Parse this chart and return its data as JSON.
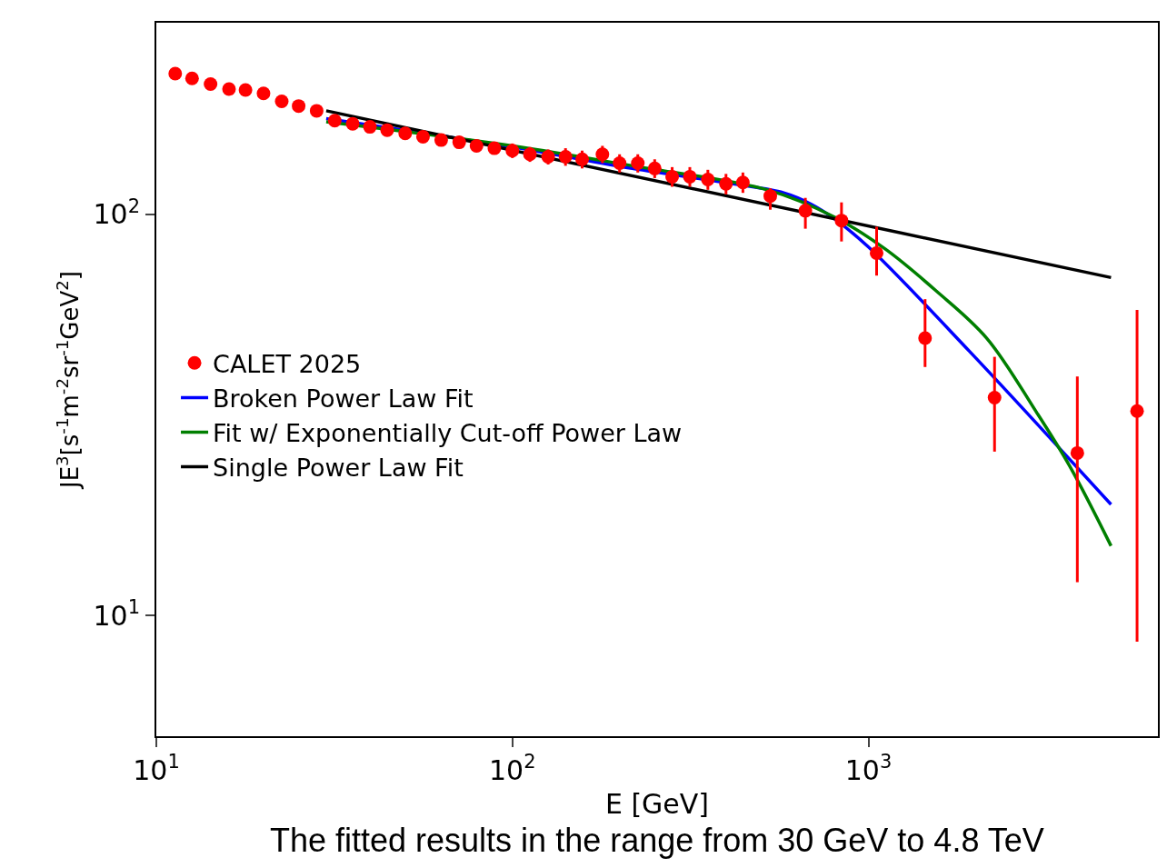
{
  "chart_data": {
    "type": "scatter",
    "xlabel": "E [GeV]",
    "ylabel": "JE$^{3}$[s$^{-1}$m$^{-2}$sr$^{-1}$GeV$^{2}$]",
    "annotations": [
      "The fitted results in the range from 30 GeV to 4.8 TeV"
    ],
    "log": "xy",
    "xlim": [
      10,
      6500
    ],
    "ylim": [
      5,
      300
    ],
    "xticks": [
      {
        "value": 10,
        "label": "10$^{1}$"
      },
      {
        "value": 100,
        "label": "10$^{2}$"
      },
      {
        "value": 1000,
        "label": "10$^{3}$"
      }
    ],
    "yticks": [
      {
        "value": 10,
        "label": "10$^{1}$"
      },
      {
        "value": 100,
        "label": "10$^{2}$"
      }
    ],
    "legend": "left",
    "series": [
      {
        "name": "CALET 2025",
        "marker": "circle",
        "color": "#ff0000",
        "x": [
          11.3,
          12.6,
          14.2,
          16.0,
          17.8,
          20.0,
          22.5,
          25.1,
          28.2,
          31.7,
          35.6,
          39.8,
          44.5,
          50.0,
          56.1,
          63.1,
          70.9,
          79.3,
          89.0,
          100,
          112,
          126,
          141,
          157,
          179,
          200,
          225,
          251,
          281,
          315,
          354,
          398,
          444,
          530,
          665,
          840,
          1054,
          1442,
          2260,
          3860,
          5680
        ],
        "values": [
          224,
          218,
          211,
          205,
          204,
          200,
          191,
          186,
          181,
          171,
          168,
          165,
          162,
          159,
          156,
          153,
          151,
          148,
          146,
          144,
          141,
          139,
          139,
          137,
          141,
          134,
          134,
          130,
          124,
          124,
          122,
          119,
          120,
          111,
          102,
          96.4,
          80.0,
          49.1,
          34.9,
          25.4,
          32.3
        ],
        "errors": [
          6,
          6,
          6,
          6,
          6,
          6,
          6,
          6,
          6,
          5,
          5,
          5,
          5,
          5,
          5,
          5,
          5,
          5,
          5,
          6,
          6,
          6,
          7,
          7,
          7,
          7,
          7,
          7,
          7,
          7,
          7,
          7,
          7,
          [
            102.6,
            116
          ],
          [
            92,
            109.8
          ],
          [
            85.5,
            107
          ],
          [
            70.3,
            93
          ],
          [
            41.6,
            61.4
          ],
          [
            25.6,
            44.1
          ],
          [
            12.1,
            39.4
          ],
          [
            8.6,
            57.7
          ]
        ]
      },
      {
        "name": "Broken Power Law Fit",
        "type": "line",
        "marker": "none",
        "color": "#0000ff",
        "x": [
          30,
          100,
          217,
          417,
          578,
          689,
          802,
          1000,
          1923,
          4800
        ],
        "values": [
          173,
          147,
          130,
          119,
          113,
          106,
          97.4,
          82.8,
          45.5,
          18.9
        ]
      },
      {
        "name": "Fit w/ Exponentially Cut-off Power Law",
        "type": "line",
        "marker": "none",
        "color": "#007f00",
        "x": [
          30,
          100,
          217,
          520,
          802,
          1112,
          1549,
          2148,
          2970,
          3690,
          4800
        ],
        "values": [
          170,
          148,
          132,
          115,
          98.4,
          82,
          64.4,
          49.1,
          32.0,
          23.4,
          14.9
        ]
      },
      {
        "name": "Single Power Law Fit",
        "type": "line",
        "marker": "none",
        "color": "#000000",
        "x": [
          30,
          4800
        ],
        "values": [
          181,
          69.5
        ]
      }
    ]
  }
}
